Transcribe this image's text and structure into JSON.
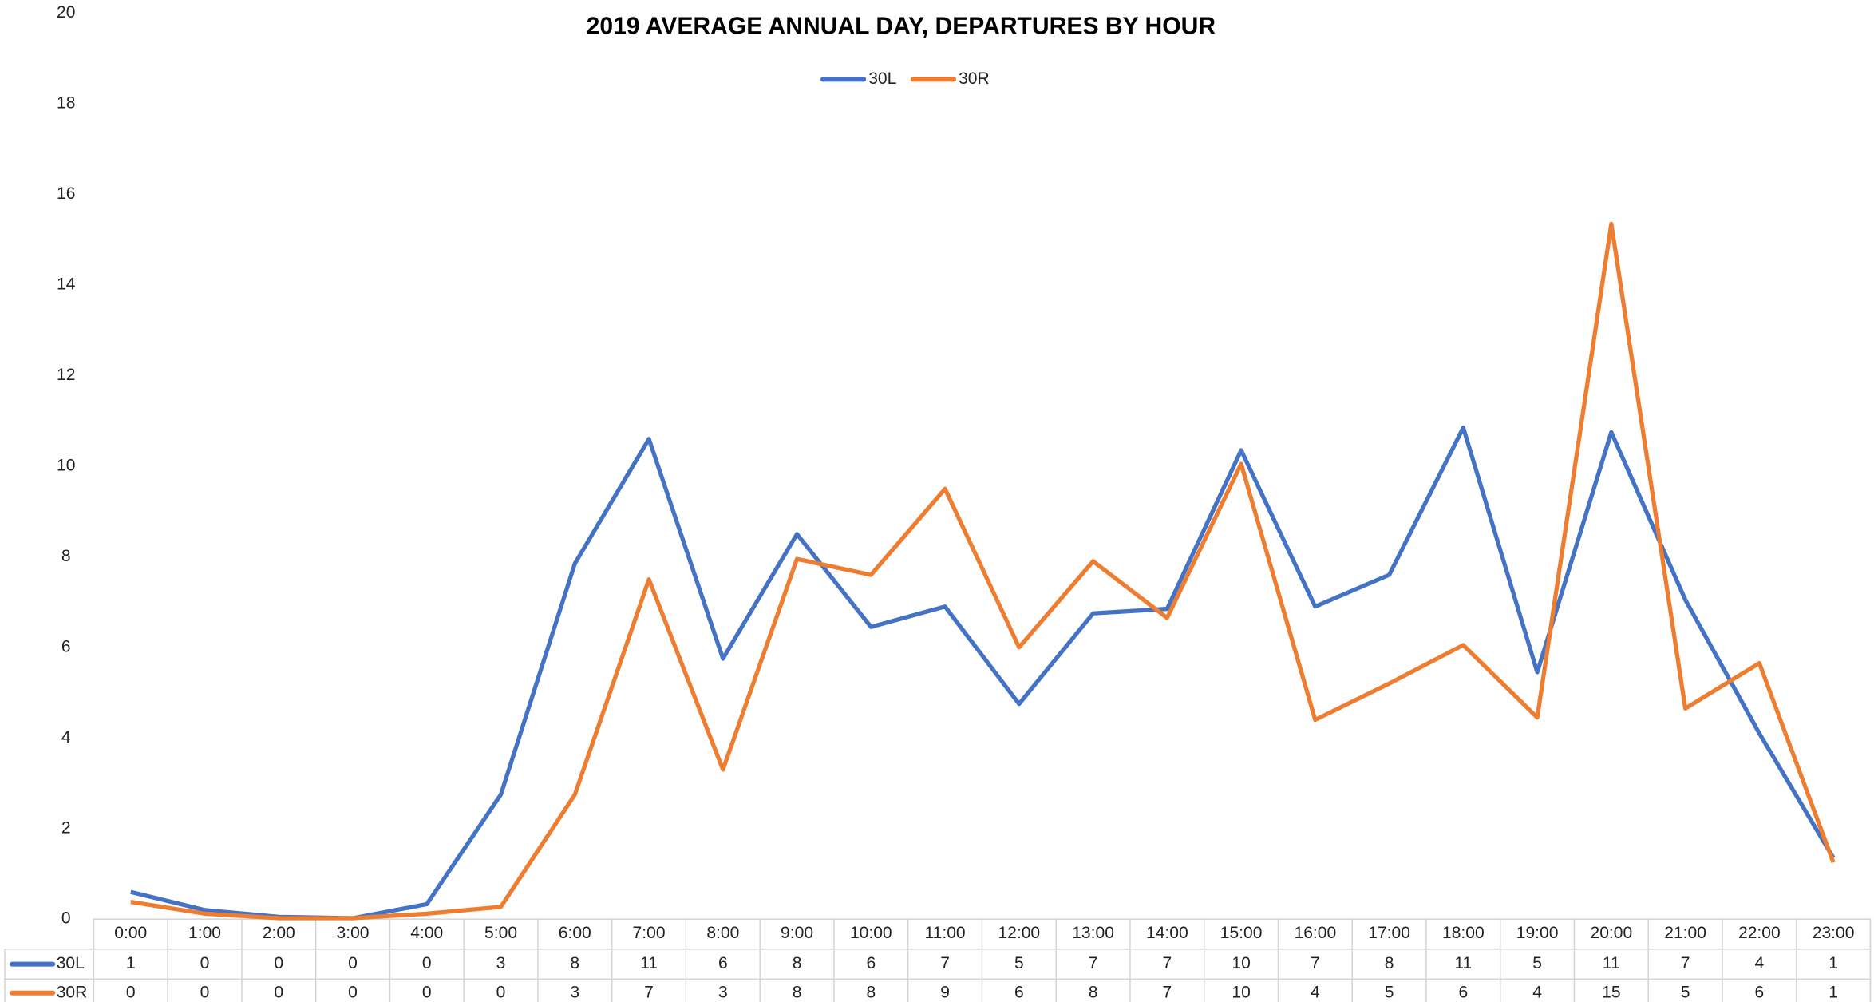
{
  "chart_data": {
    "type": "line",
    "title": "2019 AVERAGE ANNUAL DAY, DEPARTURES BY HOUR",
    "categories": [
      "0:00",
      "1:00",
      "2:00",
      "3:00",
      "4:00",
      "5:00",
      "6:00",
      "7:00",
      "8:00",
      "9:00",
      "10:00",
      "11:00",
      "12:00",
      "13:00",
      "14:00",
      "15:00",
      "16:00",
      "17:00",
      "18:00",
      "19:00",
      "20:00",
      "21:00",
      "22:00",
      "23:00"
    ],
    "series": [
      {
        "name": "30L",
        "color": "#4472c4",
        "values": [
          0.6,
          0.2,
          0.05,
          0.02,
          0.33,
          2.75,
          7.85,
          10.6,
          5.75,
          8.5,
          6.45,
          6.9,
          4.75,
          6.75,
          6.85,
          10.35,
          6.9,
          7.6,
          10.85,
          5.45,
          10.75,
          7.05,
          4.1,
          1.35
        ],
        "value_labels": [
          "1",
          "0",
          "0",
          "0",
          "0",
          "3",
          "8",
          "11",
          "6",
          "8",
          "6",
          "7",
          "5",
          "7",
          "7",
          "10",
          "7",
          "8",
          "11",
          "5",
          "11",
          "7",
          "4",
          "1"
        ]
      },
      {
        "name": "30R",
        "color": "#ed7d31",
        "values": [
          0.38,
          0.12,
          0.02,
          0.02,
          0.12,
          0.27,
          2.75,
          7.5,
          3.3,
          7.95,
          7.6,
          9.5,
          6.0,
          7.9,
          6.65,
          10.05,
          4.4,
          5.2,
          6.05,
          4.45,
          15.35,
          4.65,
          5.65,
          1.25
        ],
        "value_labels": [
          "0",
          "0",
          "0",
          "0",
          "0",
          "0",
          "3",
          "7",
          "3",
          "8",
          "8",
          "9",
          "6",
          "8",
          "7",
          "10",
          "4",
          "5",
          "6",
          "4",
          "15",
          "5",
          "6",
          "1"
        ]
      }
    ],
    "ylim": [
      0,
      20
    ],
    "yticks": [
      0,
      2,
      4,
      6,
      8,
      10,
      12,
      14,
      16,
      18,
      20
    ],
    "grid": false,
    "legend": "top"
  }
}
